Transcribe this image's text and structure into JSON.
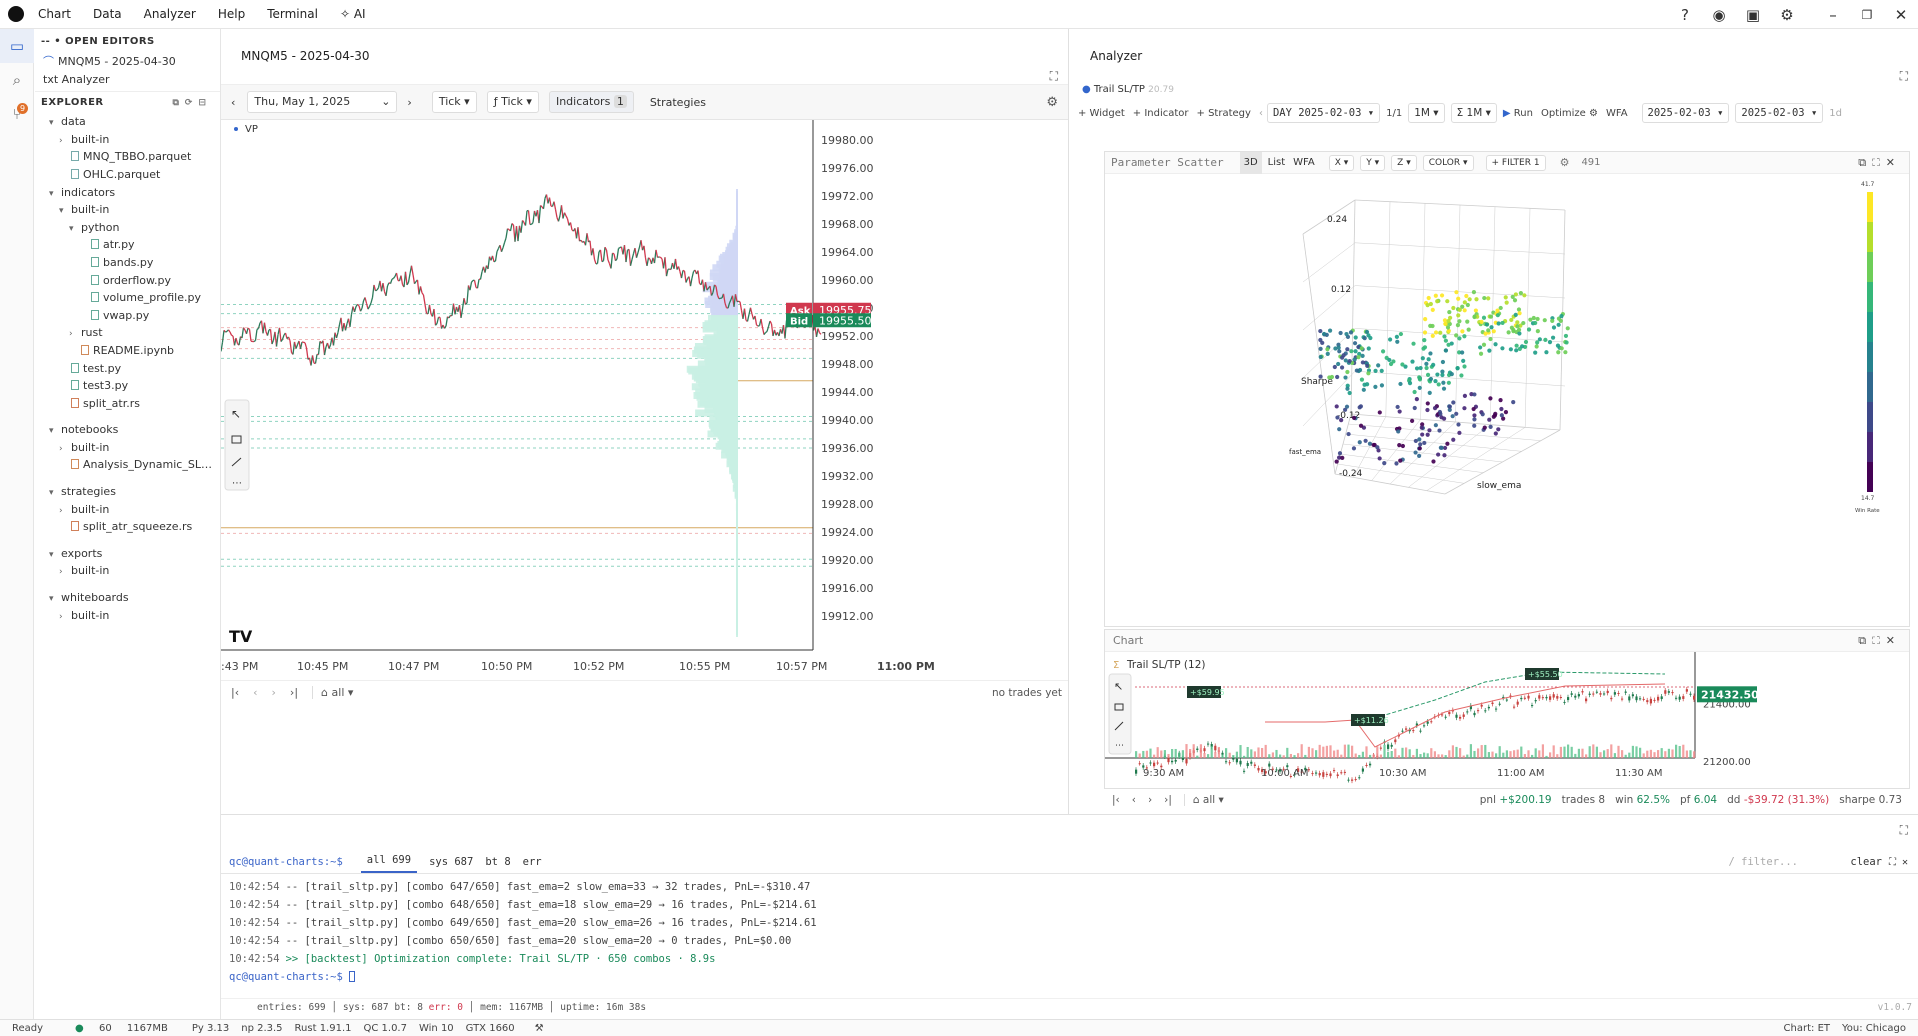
{
  "menu": {
    "items": [
      "Chart",
      "Data",
      "Analyzer",
      "Help",
      "Terminal",
      "AI"
    ],
    "help_icon": "question-circle-icon",
    "github_icon": "github-icon",
    "avatar_icon": "avatar",
    "settings_icon": "gear-icon"
  },
  "activity": {
    "items": [
      "explorer-icon",
      "search-icon",
      "source-control-icon"
    ],
    "badge": "9"
  },
  "sidebar": {
    "open_editors_title": "-- • OPEN EDITORS",
    "open_editors": [
      {
        "label": "MNQM5 - 2025-04-30"
      },
      {
        "label": "txt Analyzer"
      }
    ],
    "explorer_title": "EXPLORER",
    "tree": [
      {
        "label": "data",
        "indent": 1,
        "caret": "▾",
        "type": "folder"
      },
      {
        "label": "built-in",
        "indent": 2,
        "caret": "›",
        "type": "folder"
      },
      {
        "label": "MNQ_TBBO.parquet",
        "indent": 2,
        "caret": "",
        "type": "file"
      },
      {
        "label": "OHLC.parquet",
        "indent": 2,
        "caret": "",
        "type": "file"
      },
      {
        "label": "indicators",
        "indent": 1,
        "caret": "▾",
        "type": "folder"
      },
      {
        "label": "built-in",
        "indent": 2,
        "caret": "▾",
        "type": "folder"
      },
      {
        "label": "python",
        "indent": 3,
        "caret": "▾",
        "type": "folder"
      },
      {
        "label": "atr.py",
        "indent": 4,
        "caret": "",
        "type": "py"
      },
      {
        "label": "bands.py",
        "indent": 4,
        "caret": "",
        "type": "py"
      },
      {
        "label": "orderflow.py",
        "indent": 4,
        "caret": "",
        "type": "py"
      },
      {
        "label": "volume_profile.py",
        "indent": 4,
        "caret": "",
        "type": "py"
      },
      {
        "label": "vwap.py",
        "indent": 4,
        "caret": "",
        "type": "py"
      },
      {
        "label": "rust",
        "indent": 3,
        "caret": "›",
        "type": "folder"
      },
      {
        "label": "README.ipynb",
        "indent": 3,
        "caret": "",
        "type": "nb"
      },
      {
        "label": "test.py",
        "indent": 2,
        "caret": "",
        "type": "py"
      },
      {
        "label": "test3.py",
        "indent": 2,
        "caret": "",
        "type": "py"
      },
      {
        "label": "split_atr.rs",
        "indent": 2,
        "caret": "",
        "type": "rs"
      },
      {
        "label": "",
        "indent": 0,
        "caret": "",
        "type": "spacer"
      },
      {
        "label": "notebooks",
        "indent": 1,
        "caret": "▾",
        "type": "folder"
      },
      {
        "label": "built-in",
        "indent": 2,
        "caret": "›",
        "type": "folder"
      },
      {
        "label": "Analysis_Dynamic_SL…",
        "indent": 2,
        "caret": "",
        "type": "nb"
      },
      {
        "label": "",
        "indent": 0,
        "caret": "",
        "type": "spacer"
      },
      {
        "label": "strategies",
        "indent": 1,
        "caret": "▾",
        "type": "folder"
      },
      {
        "label": "built-in",
        "indent": 2,
        "caret": "›",
        "type": "folder"
      },
      {
        "label": "split_atr_squeeze.rs",
        "indent": 2,
        "caret": "",
        "type": "rs"
      },
      {
        "label": "",
        "indent": 0,
        "caret": "",
        "type": "spacer"
      },
      {
        "label": "exports",
        "indent": 1,
        "caret": "▾",
        "type": "folder"
      },
      {
        "label": "built-in",
        "indent": 2,
        "caret": "›",
        "type": "folder"
      },
      {
        "label": "",
        "indent": 0,
        "caret": "",
        "type": "spacer"
      },
      {
        "label": "whiteboards",
        "indent": 1,
        "caret": "▾",
        "type": "folder"
      },
      {
        "label": "built-in",
        "indent": 2,
        "caret": "›",
        "type": "folder"
      }
    ]
  },
  "chart": {
    "title": "MNQM5 - 2025-04-30",
    "date": "Thu, May 1, 2025",
    "tick1": "Tick",
    "tick2": "ƒ Tick",
    "indicators_label": "Indicators",
    "indicators_count": "1",
    "strategies_label": "Strategies",
    "vp_label": "VP",
    "price_ticks": [
      "19980.00",
      "19976.00",
      "19972.00",
      "19968.00",
      "19964.00",
      "19960.00",
      "19956.00",
      "19952.00",
      "19948.00",
      "19944.00",
      "19940.00",
      "19936.00",
      "19932.00",
      "19928.00",
      "19924.00",
      "19920.00",
      "19916.00",
      "19912.00"
    ],
    "time_ticks": [
      ":43 PM",
      "10:45 PM",
      "10:47 PM",
      "10:50 PM",
      "10:52 PM",
      "10:55 PM",
      "10:57 PM",
      "11:00 PM"
    ],
    "ask_label": "Ask",
    "ask_price": "19955.75",
    "bid_label": "Bid",
    "bid_price": "19955.50",
    "filter": "all",
    "no_trades": "no trades yet",
    "logo": "TV"
  },
  "analyzer": {
    "title": "Analyzer",
    "strategy_tag": "Trail SL/TP",
    "strategy_tag_sub": "20.79",
    "toolbar": {
      "widget": "+ Widget",
      "indicator": "+ Indicator",
      "strategy": "+ Strategy",
      "day": "DAY 2025-02-03",
      "page": "1/1",
      "tf1": "1M",
      "tf2": "Σ 1M",
      "run": "Run",
      "optimize": "Optimize",
      "wfa": "WFA",
      "date_from": "2025-02-03",
      "date_to": "2025-02-03",
      "period": "1d"
    },
    "scatter": {
      "title": "Parameter Scatter",
      "tabs": [
        "3D",
        "List",
        "WFA"
      ],
      "axes": [
        "X",
        "Y",
        "Z",
        "COLOR"
      ],
      "filter": "+ FILTER 1",
      "count": "491",
      "z_ticks": [
        "0.24",
        "0.12",
        "-0.12",
        "-0.24"
      ],
      "z_label": "Sharpe",
      "x_label": "fast_ema",
      "y_label": "slow_ema",
      "colorbar_max": "41.7",
      "colorbar_min": "14.7",
      "colorbar_label": "Win Rate"
    },
    "chart": {
      "title": "Chart",
      "series": "Trail SL/TP (12)",
      "price_tag": "21432.50",
      "price_ticks": [
        "21400.00",
        "21200.00"
      ],
      "time_ticks": [
        "9:30 AM",
        "10:00 AM",
        "10:30 AM",
        "11:00 AM",
        "11:30 AM"
      ],
      "trade_tags": [
        "+$59.95",
        "+$11.26",
        "+$55.50"
      ],
      "filter": "all",
      "stats": {
        "pnl_label": "pnl",
        "pnl": "+$200.19",
        "trades_label": "trades",
        "trades": "8",
        "win_label": "win",
        "win": "62.5%",
        "pf_label": "pf",
        "pf": "6.04",
        "dd_label": "dd",
        "dd": "-$39.72 (31.3%)",
        "sharpe_label": "sharpe",
        "sharpe": "0.73"
      }
    }
  },
  "terminal": {
    "prompt": "qc@quant-charts:~$",
    "tabs": [
      {
        "label": "all",
        "count": "699"
      },
      {
        "label": "sys",
        "count": "687"
      },
      {
        "label": "bt",
        "count": "8"
      },
      {
        "label": "err",
        "count": ""
      }
    ],
    "filter_placeholder": "/ filter...",
    "clear": "clear",
    "lines": [
      {
        "ts": "10:42:54",
        "text": "-- [trail_sltp.py] [combo 647/650] fast_ema=2 slow_ema=33 → 32 trades, PnL=-$310.47"
      },
      {
        "ts": "10:42:54",
        "text": "-- [trail_sltp.py] [combo 648/650] fast_ema=18 slow_ema=29 → 16 trades, PnL=-$214.61"
      },
      {
        "ts": "10:42:54",
        "text": "-- [trail_sltp.py] [combo 649/650] fast_ema=20 slow_ema=26 → 16 trades, PnL=-$214.61"
      },
      {
        "ts": "10:42:54",
        "text": "-- [trail_sltp.py] [combo 650/650] fast_ema=20 slow_ema=20 → 0 trades, PnL=$0.00"
      },
      {
        "ts": "10:42:54",
        "text": ">> [backtest] Optimization complete: Trail SL/TP · 650 combos · 8.9s"
      }
    ],
    "footer": {
      "entries": "entries: 699",
      "sys": "sys: 687",
      "bt": "bt: 8",
      "err": "err: 0",
      "mem": "mem: 1167MB",
      "uptime": "uptime: 16m 38s"
    },
    "version": "v1.0.7"
  },
  "status": {
    "ready": "Ready",
    "fps": "60",
    "mem": "1167MB",
    "py": "Py 3.13",
    "np": "np 2.3.5",
    "rust": "Rust 1.91.1",
    "qc": "QC 1.0.7",
    "win": "Win 10",
    "gpu": "GTX 1660",
    "chart_tz": "Chart: ET",
    "you_tz": "You: Chicago"
  },
  "colors": {
    "accent": "#3366cc",
    "ask": "#d0384e",
    "bid": "#1a8a5a",
    "up": "#1f7a4d",
    "down": "#c8423f"
  }
}
